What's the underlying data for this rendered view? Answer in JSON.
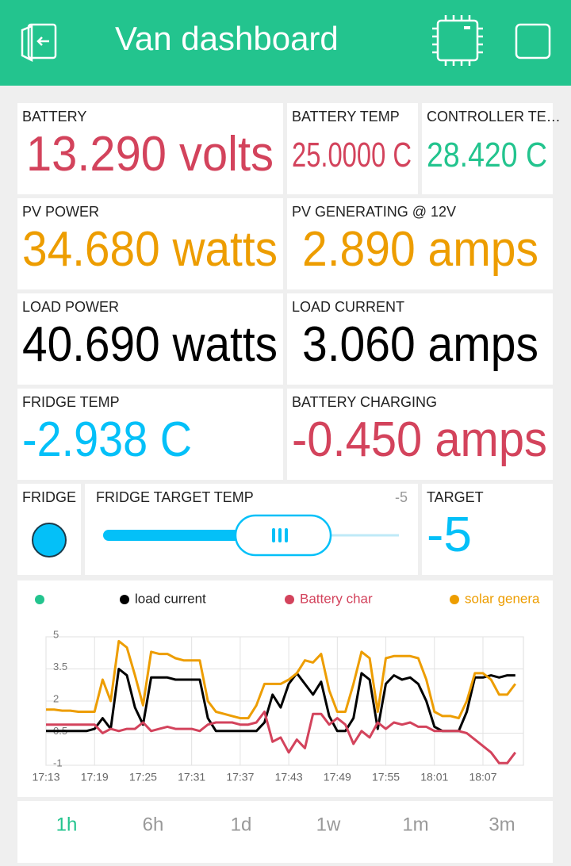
{
  "header": {
    "title": "Van dashboard"
  },
  "tiles": [
    {
      "label": "BATTERY",
      "value": "13.290 volts",
      "color": "#d3435c"
    },
    {
      "label": "BATTERY TEMP",
      "value": "25.0000 C",
      "color": "#d3435c"
    },
    {
      "label": "CONTROLLER TE…",
      "value": "28.420 C",
      "color": "#23c48e"
    },
    {
      "label": "PV POWER",
      "value": "34.680 watts",
      "color": "#ed9d00"
    },
    {
      "label": "PV GENERATING @ 12V",
      "value": "2.890 amps",
      "color": "#ed9d00"
    },
    {
      "label": "LOAD POWER",
      "value": "40.690 watts",
      "color": "#000000"
    },
    {
      "label": "LOAD CURRENT",
      "value": "3.060 amps",
      "color": "#000000"
    },
    {
      "label": "FRIDGE TEMP",
      "value": "-2.938 C",
      "color": "#04c0f8"
    },
    {
      "label": "BATTERY CHARGING",
      "value": "-0.450 amps",
      "color": "#d3435c"
    }
  ],
  "fridge": {
    "label": "FRIDGE"
  },
  "slider": {
    "label": "FRIDGE TARGET TEMP",
    "value": "-5"
  },
  "target": {
    "label": "TARGET",
    "value": "-5"
  },
  "chart_data": {
    "type": "line",
    "x": [
      "17:13",
      "17:14",
      "17:15",
      "17:16",
      "17:17",
      "17:18",
      "17:19",
      "17:20",
      "17:21",
      "17:22",
      "17:23",
      "17:24",
      "17:25",
      "17:26",
      "17:27",
      "17:28",
      "17:29",
      "17:30",
      "17:31",
      "17:32",
      "17:33",
      "17:34",
      "17:35",
      "17:36",
      "17:37",
      "17:38",
      "17:39",
      "17:40",
      "17:41",
      "17:42",
      "17:43",
      "17:44",
      "17:45",
      "17:46",
      "17:47",
      "17:48",
      "17:49",
      "17:50",
      "17:51",
      "17:52",
      "17:53",
      "17:54",
      "17:55",
      "17:56",
      "17:57",
      "17:58",
      "17:59",
      "18:00",
      "18:01",
      "18:02",
      "18:03",
      "18:04",
      "18:05",
      "18:06",
      "18:07",
      "18:08",
      "18:09",
      "18:10",
      "18:11"
    ],
    "series": [
      {
        "name": "load current",
        "color": "#000000",
        "values": [
          0.6,
          0.6,
          0.6,
          0.6,
          0.6,
          0.6,
          0.7,
          1.2,
          0.7,
          3.5,
          3.2,
          1.7,
          0.9,
          3.1,
          3.1,
          3.1,
          3.0,
          3.0,
          3.0,
          3.0,
          1.2,
          0.6,
          0.6,
          0.6,
          0.6,
          0.6,
          0.6,
          1.0,
          2.3,
          1.7,
          2.8,
          3.3,
          2.8,
          2.3,
          2.9,
          1.3,
          0.6,
          0.6,
          1.2,
          3.3,
          3.0,
          0.7,
          2.8,
          3.2,
          3.0,
          3.1,
          2.8,
          2.0,
          0.8,
          0.6,
          0.6,
          0.6,
          1.5,
          3.1,
          3.1,
          3.2,
          3.1,
          3.2,
          3.2
        ]
      },
      {
        "name": "Battery char",
        "color": "#d3435c",
        "values": [
          0.9,
          0.9,
          0.9,
          0.9,
          0.9,
          0.9,
          0.9,
          0.5,
          0.7,
          0.6,
          0.7,
          0.7,
          1.0,
          0.6,
          0.7,
          0.8,
          0.7,
          0.7,
          0.7,
          0.6,
          0.9,
          1.0,
          1.0,
          1.0,
          0.9,
          0.9,
          1.0,
          1.5,
          0.1,
          0.3,
          -0.4,
          0.2,
          -0.2,
          1.4,
          1.4,
          0.9,
          1.2,
          0.9,
          0.0,
          0.6,
          0.3,
          1.0,
          0.7,
          1.0,
          0.9,
          1.0,
          0.8,
          0.8,
          0.6,
          0.6,
          0.6,
          0.6,
          0.5,
          0.2,
          -0.1,
          -0.4,
          -0.9,
          -0.9,
          -0.4
        ]
      },
      {
        "name": "solar genera",
        "color": "#ed9d00",
        "values": [
          1.6,
          1.6,
          1.55,
          1.55,
          1.5,
          1.5,
          1.5,
          3.0,
          2.0,
          4.8,
          4.5,
          3.2,
          1.8,
          4.3,
          4.2,
          4.2,
          4.0,
          3.9,
          3.9,
          3.9,
          2.0,
          1.5,
          1.4,
          1.3,
          1.2,
          1.2,
          1.8,
          2.8,
          2.8,
          2.8,
          3.0,
          3.3,
          3.9,
          3.8,
          4.2,
          2.5,
          1.5,
          1.5,
          2.8,
          4.3,
          4.0,
          1.5,
          4.0,
          4.1,
          4.1,
          4.1,
          4.0,
          3.0,
          1.5,
          1.3,
          1.3,
          1.2,
          2.0,
          3.3,
          3.3,
          3.0,
          2.3,
          2.3,
          2.8
        ]
      }
    ],
    "xlim": [
      "17:13",
      "18:12"
    ],
    "xticks": [
      "17:13",
      "17:19",
      "17:25",
      "17:31",
      "17:37",
      "17:43",
      "17:49",
      "17:55",
      "18:01",
      "18:07"
    ],
    "ylim": [
      -1,
      5
    ],
    "yticks": [
      5,
      3.5,
      2,
      0.5,
      -1
    ],
    "grid": true
  },
  "tabs": [
    "1h",
    "6h",
    "1d",
    "1w",
    "1m",
    "3m"
  ],
  "active_tab": 0
}
